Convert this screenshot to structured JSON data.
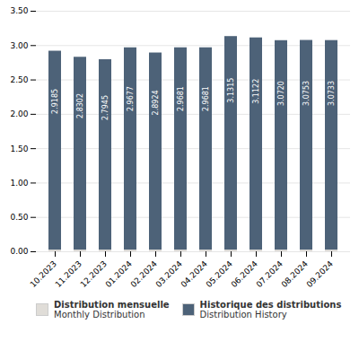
{
  "chart_data": {
    "type": "bar",
    "categories": [
      "10.2023",
      "11.2023",
      "12.2023",
      "01.2024",
      "02.2024",
      "03.2024",
      "04.2024",
      "05.2024",
      "06.2024",
      "07.2024",
      "08.2024",
      "09.2024"
    ],
    "series": [
      {
        "name": "Distribution mensuelle\nMonthly Distribution",
        "color": "#e0ddd8",
        "values": [
          0.025,
          0.025,
          0.025,
          0.025,
          0.025,
          0.025,
          0.025,
          0.025,
          0.025,
          0.025,
          0.025,
          0.025
        ]
      },
      {
        "name": "Historique des distributions\nDistribution History",
        "color": "#4d6278",
        "values": [
          2.9185,
          2.8302,
          2.7945,
          2.9677,
          2.8924,
          2.9681,
          2.9681,
          3.1315,
          3.1122,
          3.072,
          3.0753,
          3.0733
        ],
        "data_labels": true,
        "value_labels": [
          "2.9185",
          "2.8302",
          "2.7945",
          "2.9677",
          "2.8924",
          "2.9681",
          "2.9681",
          "3.1315",
          "3.1122",
          "3.0720",
          "3.0753",
          "3.0733"
        ]
      }
    ],
    "ylim": [
      0,
      3.5
    ],
    "yticks": [
      {
        "value": 0,
        "label": "0.00"
      },
      {
        "value": 0.5,
        "label": "0.50"
      },
      {
        "value": 1,
        "label": "1.00"
      },
      {
        "value": 1.5,
        "label": "1.50"
      },
      {
        "value": 2,
        "label": "2.00"
      },
      {
        "value": 2.5,
        "label": "2.50"
      },
      {
        "value": 3,
        "label": "3.00"
      },
      {
        "value": 3.5,
        "label": "3.50"
      }
    ],
    "grid": true,
    "legend": "bottom"
  }
}
